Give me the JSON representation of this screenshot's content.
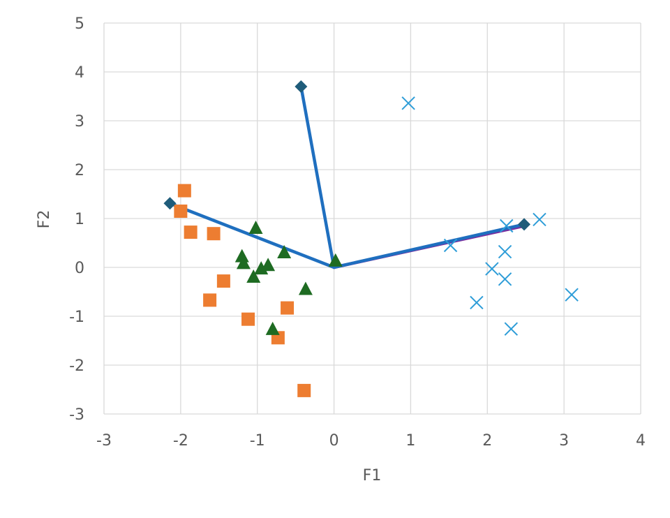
{
  "chart_data": {
    "type": "scatter",
    "title": "",
    "xlabel": "F1",
    "ylabel": "F2",
    "xlim": [
      -3,
      4
    ],
    "ylim": [
      -3,
      5
    ],
    "x_ticks": [
      "-3",
      "-2",
      "-1",
      "0",
      "1",
      "2",
      "3",
      "4"
    ],
    "y_ticks": [
      "5",
      "4",
      "3",
      "2",
      "1",
      "0",
      "-1",
      "-2",
      "-3"
    ],
    "grid": true,
    "legend": "none",
    "series": [
      {
        "marker": "square",
        "color": "#ED7D31",
        "points": [
          [
            -1.95,
            1.57
          ],
          [
            -2.0,
            1.15
          ],
          [
            -1.87,
            0.72
          ],
          [
            -1.57,
            0.69
          ],
          [
            -1.44,
            -0.28
          ],
          [
            -1.62,
            -0.67
          ],
          [
            -1.12,
            -1.06
          ],
          [
            -0.61,
            -0.83
          ],
          [
            -0.73,
            -1.44
          ],
          [
            -0.39,
            -2.52
          ]
        ]
      },
      {
        "marker": "triangle",
        "color": "#1E6B22",
        "points": [
          [
            -1.02,
            0.8
          ],
          [
            -0.65,
            0.3
          ],
          [
            -1.2,
            0.22
          ],
          [
            -1.18,
            0.08
          ],
          [
            -0.95,
            -0.03
          ],
          [
            -0.86,
            0.04
          ],
          [
            -1.05,
            -0.2
          ],
          [
            -0.37,
            -0.45
          ],
          [
            0.02,
            0.13
          ],
          [
            -0.8,
            -1.27
          ]
        ]
      },
      {
        "marker": "x",
        "color": "#2E9DD8",
        "points": [
          [
            0.97,
            3.36
          ],
          [
            1.52,
            0.45
          ],
          [
            2.25,
            0.85
          ],
          [
            2.68,
            0.98
          ],
          [
            2.23,
            0.32
          ],
          [
            2.06,
            -0.03
          ],
          [
            2.23,
            -0.24
          ],
          [
            1.86,
            -0.72
          ],
          [
            3.1,
            -0.56
          ],
          [
            2.31,
            -1.26
          ]
        ]
      },
      {
        "marker": "diamond",
        "color": "#1F5C7A",
        "points": [
          [
            -2.14,
            1.31
          ],
          [
            -0.43,
            3.7
          ],
          [
            2.48,
            0.88
          ]
        ]
      }
    ],
    "lines": [
      {
        "color": "#7B2C9E",
        "points": [
          [
            0,
            0
          ],
          [
            2.48,
            0.85
          ]
        ]
      },
      {
        "color": "#1F6FBF",
        "points": [
          [
            0,
            0
          ],
          [
            -2.14,
            1.31
          ]
        ]
      },
      {
        "color": "#1F6FBF",
        "points": [
          [
            0,
            0
          ],
          [
            -0.43,
            3.7
          ]
        ]
      },
      {
        "color": "#1F6FBF",
        "points": [
          [
            0,
            0
          ],
          [
            2.48,
            0.88
          ]
        ]
      }
    ],
    "colors": {
      "grid": "#D9D9D9",
      "text": "#595959"
    }
  }
}
